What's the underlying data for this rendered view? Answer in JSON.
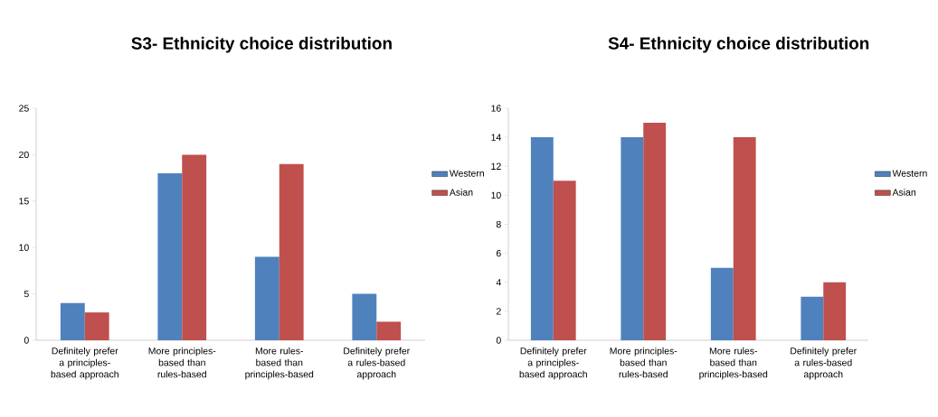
{
  "chart_data": [
    {
      "type": "bar",
      "title": "S3- Ethnicity choice distribution",
      "categories": [
        "Definitely prefer a principles-based approach",
        "More principles-based than rules-based",
        "More rules-based than principles-based",
        "Definitely prefer a rules-based approach"
      ],
      "series": [
        {
          "name": "Western",
          "color": "#4f81bd",
          "values": [
            4,
            18,
            9,
            5
          ]
        },
        {
          "name": "Asian",
          "color": "#c0504d",
          "values": [
            3,
            20,
            19,
            2
          ]
        }
      ],
      "ylim": [
        0,
        25
      ],
      "yticks": [
        0,
        5,
        10,
        15,
        20,
        25
      ],
      "legend": "right"
    },
    {
      "type": "bar",
      "title": "S4- Ethnicity choice distribution",
      "categories": [
        "Definitely prefer a principles-based approach",
        "More principles-based than rules-based",
        "More rules-based than principles-based",
        "Definitely prefer a rules-based approach"
      ],
      "series": [
        {
          "name": "Western",
          "color": "#4f81bd",
          "values": [
            14,
            14,
            5,
            3
          ]
        },
        {
          "name": "Asian",
          "color": "#c0504d",
          "values": [
            11,
            15,
            14,
            4
          ]
        }
      ],
      "ylim": [
        0,
        16
      ],
      "yticks": [
        0,
        2,
        4,
        6,
        8,
        10,
        12,
        14,
        16
      ],
      "legend": "right"
    }
  ]
}
